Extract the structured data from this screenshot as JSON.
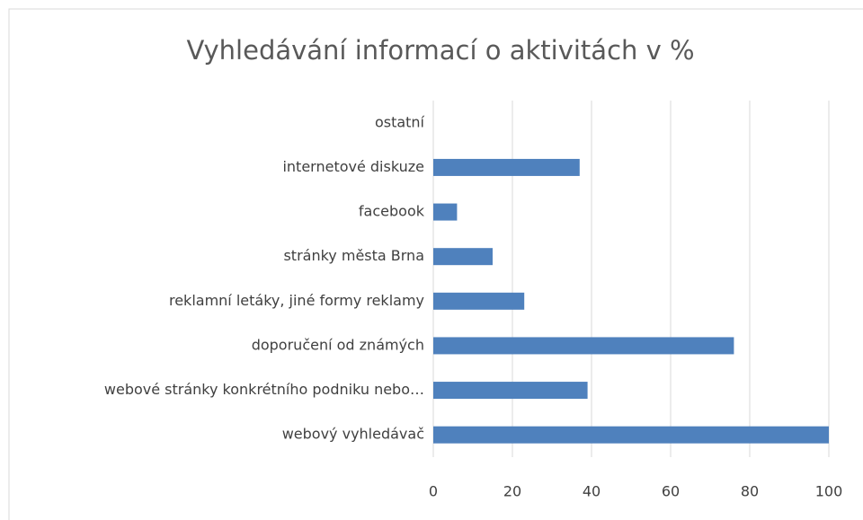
{
  "chart_data": {
    "type": "bar",
    "orientation": "horizontal",
    "title": "Vyhledávání informací o aktivitách v %",
    "categories": [
      "ostatní",
      "internetové diskuze",
      "facebook",
      "stránky města Brna",
      "reklamní letáky, jiné formy reklamy",
      "doporučení od známých",
      "webové stránky konkrétního podniku nebo…",
      "webový vyhledávač"
    ],
    "values": [
      0,
      37,
      6,
      15,
      23,
      76,
      39,
      100
    ],
    "color": "#4f81bd",
    "xlim": [
      0,
      100
    ],
    "xticks": [
      0,
      20,
      40,
      60,
      80,
      100
    ],
    "grid": true
  }
}
